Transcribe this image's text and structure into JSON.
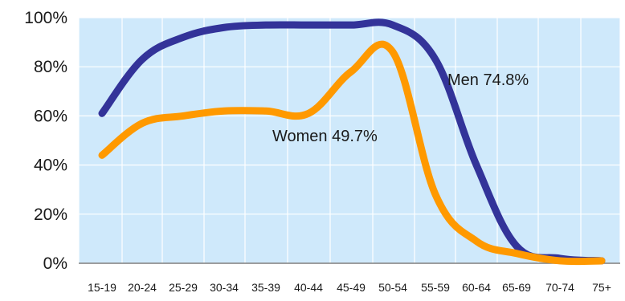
{
  "chart_data": {
    "type": "line",
    "title": "",
    "xlabel": "",
    "ylabel": "",
    "x": [
      "15-19",
      "20-24",
      "25-29",
      "30-34",
      "35-39",
      "40-44",
      "45-49",
      "50-54",
      "55-59",
      "60-64",
      "65-69",
      "70-74",
      "75+"
    ],
    "ylim": [
      0,
      100
    ],
    "yticks": [
      "0%",
      "20%",
      "40%",
      "60%",
      "80%",
      "100%"
    ],
    "grid": true,
    "legend": "none",
    "background_color": "#cfe9fb",
    "series": [
      {
        "name": "Men",
        "annotation": "Men 74.8%",
        "color": "#333399",
        "values": [
          61,
          83,
          92,
          96,
          97,
          97,
          97,
          97,
          83,
          40,
          7,
          2,
          1
        ]
      },
      {
        "name": "Women",
        "annotation": "Women  49.7%",
        "color": "#ff9900",
        "values": [
          44,
          57,
          60,
          62,
          62,
          61,
          78,
          86,
          28,
          9,
          4,
          1,
          1
        ]
      }
    ]
  }
}
